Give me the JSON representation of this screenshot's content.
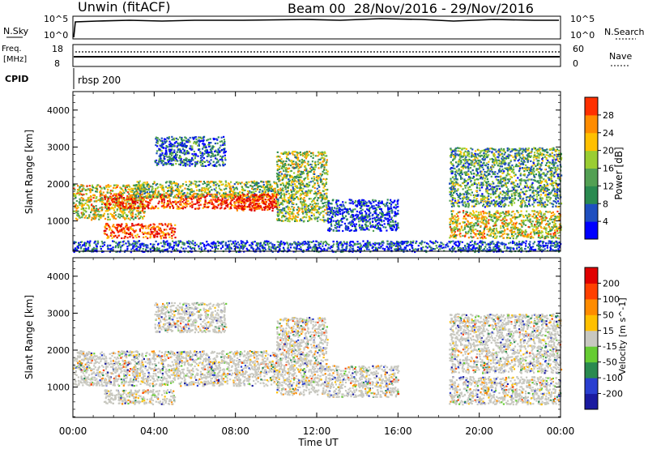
{
  "header": {
    "title": "Unwin (fitACF)",
    "beam_info": "Beam 00  28/Nov/2016 - 29/Nov/2016"
  },
  "top_panels": {
    "nsky_label": "N.Sky",
    "nsky_ticks": [
      "10^5",
      "10^0"
    ],
    "nsearch_label": "N.Search",
    "freq_label_line1": "Freq.",
    "freq_label_line2": "[MHz]",
    "freq_ticks": [
      "18",
      "8"
    ],
    "nave_label": "Nave",
    "nave_ticks": [
      "60",
      "0"
    ],
    "cpid_label": "CPID",
    "cpid_value": "rbsp 200"
  },
  "colors": {
    "frame": "#000000",
    "power_scale": [
      "#0000ff",
      "#1f4fbf",
      "#2a8a50",
      "#53a053",
      "#9acd32",
      "#ffc000",
      "#ff8c00",
      "#ff3000",
      "#e00000"
    ],
    "velocity_scale": [
      "#1a1aa0",
      "#2a3fd0",
      "#2a8a50",
      "#66cc33",
      "#c8c8c0",
      "#ffc000",
      "#ff8c00",
      "#ff4000",
      "#e00000"
    ]
  },
  "chart_data": [
    {
      "type": "heatmap",
      "panel": "power",
      "ylabel": "Slant Range [km]",
      "ylim": [
        180,
        4500
      ],
      "yticks": [
        "1000",
        "2000",
        "3000",
        "4000"
      ],
      "xlim": [
        "00:00",
        "24:00"
      ],
      "colorbar": {
        "label": "Power [dB]",
        "range": [
          0,
          32
        ],
        "ticks": [
          "4",
          "8",
          "12",
          "16",
          "20",
          "24",
          "28"
        ]
      },
      "regions": [
        {
          "name": "A",
          "t": [
            0.0,
            3.5
          ],
          "r": [
            1050,
            2000
          ],
          "level": 0.55
        },
        {
          "name": "B",
          "t": [
            1.5,
            10.0
          ],
          "r": [
            1350,
            1750
          ],
          "level": 0.85
        },
        {
          "name": "C",
          "t": [
            1.5,
            5.0
          ],
          "r": [
            550,
            950
          ],
          "level": 0.85
        },
        {
          "name": "D",
          "t": [
            3.0,
            10.0
          ],
          "r": [
            1650,
            2100
          ],
          "level": 0.45
        },
        {
          "name": "E",
          "t": [
            4.0,
            7.5
          ],
          "r": [
            2500,
            3300
          ],
          "level": 0.2
        },
        {
          "name": "F",
          "t": [
            8.0,
            10.0
          ],
          "r": [
            1300,
            1750
          ],
          "level": 0.9
        },
        {
          "name": "G",
          "t": [
            10.0,
            12.5
          ],
          "r": [
            1000,
            2900
          ],
          "level": 0.45
        },
        {
          "name": "H",
          "t": [
            12.5,
            16.0
          ],
          "r": [
            750,
            1600
          ],
          "level": 0.15
        },
        {
          "name": "I",
          "t": [
            18.5,
            24.0
          ],
          "r": [
            1400,
            3000
          ],
          "level": 0.35
        },
        {
          "name": "J",
          "t": [
            18.5,
            24.0
          ],
          "r": [
            550,
            1300
          ],
          "level": 0.55
        },
        {
          "name": "K",
          "t": [
            0.0,
            24.0
          ],
          "r": [
            180,
            480
          ],
          "level": 0.15
        }
      ]
    },
    {
      "type": "heatmap",
      "panel": "velocity",
      "ylabel": "Slant Range [km]",
      "xlabel": "Time UT",
      "ylim": [
        180,
        4500
      ],
      "yticks": [
        "1000",
        "2000",
        "3000",
        "4000"
      ],
      "xlim": [
        "00:00",
        "24:00"
      ],
      "xticks": [
        "00:00",
        "04:00",
        "08:00",
        "12:00",
        "16:00",
        "20:00",
        "00:00"
      ],
      "colorbar": {
        "label": "Velocity [m s^-1]",
        "ticks": [
          "200",
          "100",
          "50",
          "15",
          "-15",
          "-50",
          "-100",
          "-200"
        ]
      },
      "regions": [
        {
          "name": "A",
          "t": [
            0.0,
            10.0
          ],
          "r": [
            1050,
            2000
          ],
          "level": 0.5
        },
        {
          "name": "B",
          "t": [
            1.5,
            5.0
          ],
          "r": [
            550,
            950
          ],
          "level": 0.5
        },
        {
          "name": "E",
          "t": [
            4.0,
            7.5
          ],
          "r": [
            2500,
            3300
          ],
          "level": 0.5
        },
        {
          "name": "G",
          "t": [
            10.0,
            12.5
          ],
          "r": [
            800,
            2900
          ],
          "level": 0.5
        },
        {
          "name": "H",
          "t": [
            12.5,
            16.0
          ],
          "r": [
            750,
            1600
          ],
          "level": 0.5
        },
        {
          "name": "I",
          "t": [
            18.5,
            24.0
          ],
          "r": [
            1400,
            3000
          ],
          "level": 0.5
        },
        {
          "name": "J",
          "t": [
            18.5,
            24.0
          ],
          "r": [
            550,
            1300
          ],
          "level": 0.5
        }
      ]
    }
  ]
}
